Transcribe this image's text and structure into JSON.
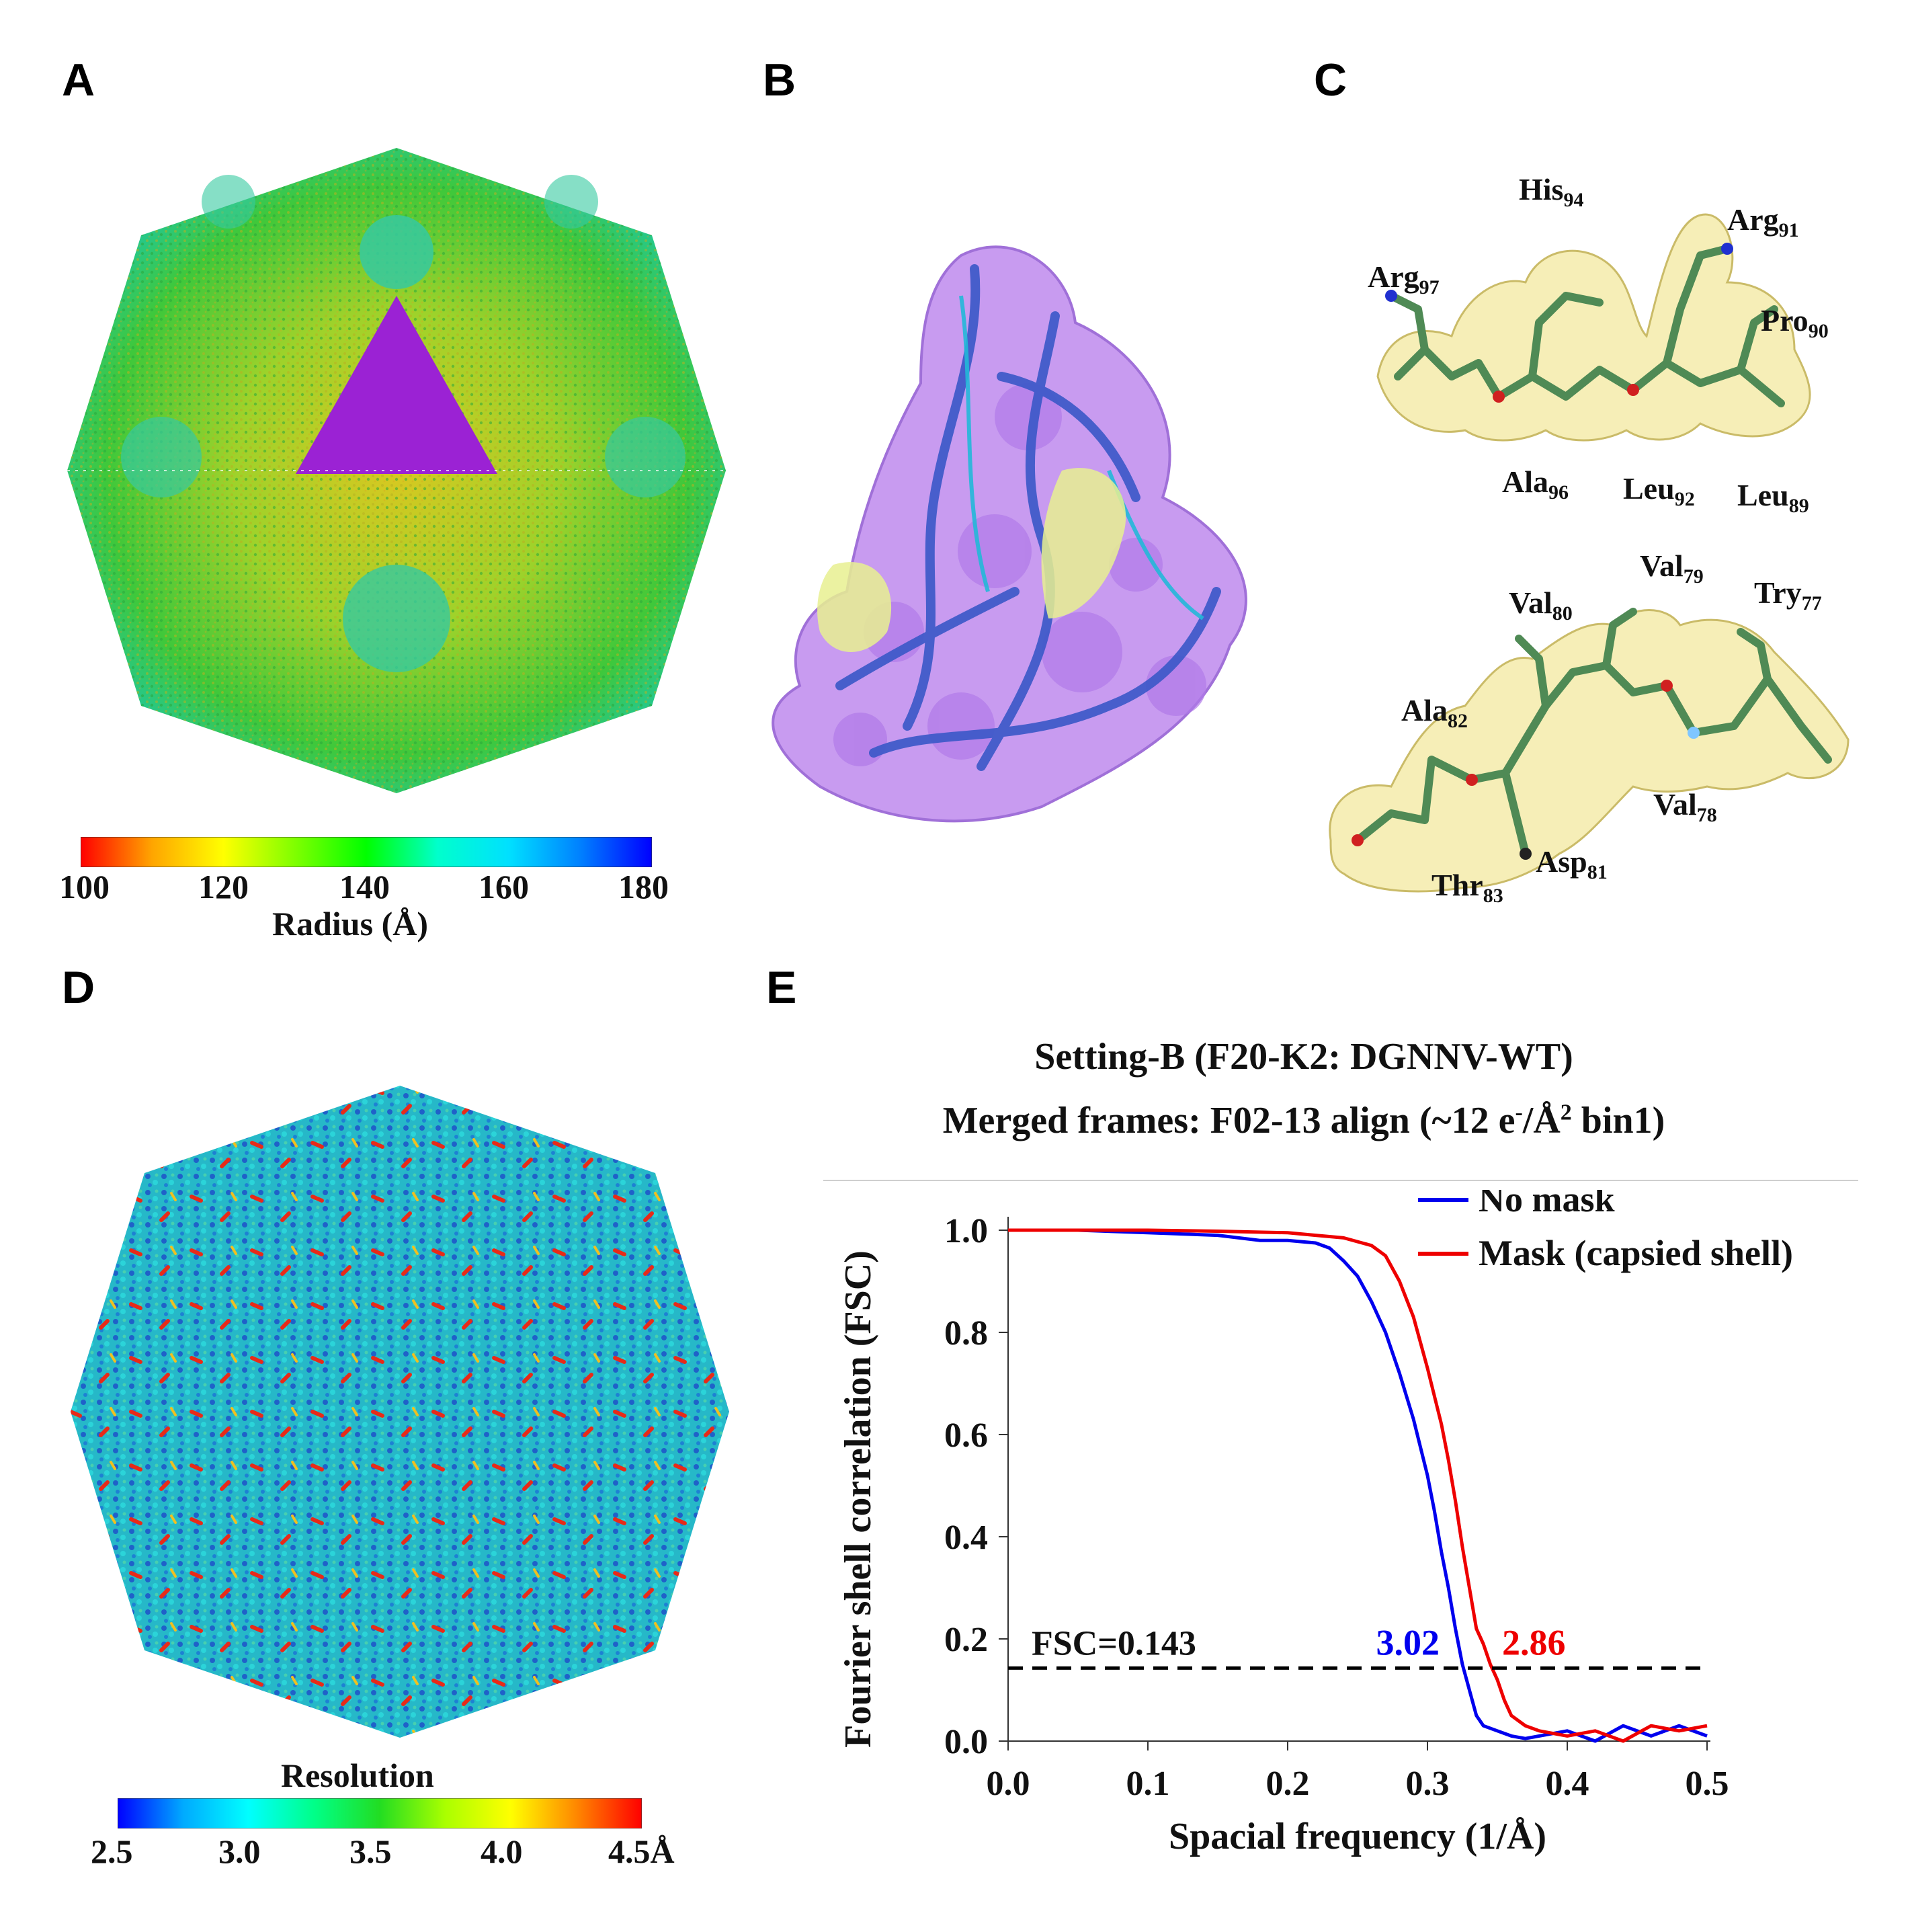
{
  "panels": {
    "A": {
      "label": "A",
      "colorbar": {
        "colors": [
          "#ff0000",
          "#ffa500",
          "#ffff00",
          "#7fff00",
          "#00ff00",
          "#00ffcc",
          "#00e0ff",
          "#0080ff",
          "#0000ff"
        ],
        "ticks": [
          "100",
          "120",
          "140",
          "160",
          "180"
        ],
        "title": "Radius (Å)"
      }
    },
    "B": {
      "label": "B"
    },
    "C": {
      "label": "C",
      "top_residues": [
        {
          "name": "His",
          "num": "94"
        },
        {
          "name": "Arg",
          "num": "91"
        },
        {
          "name": "Arg",
          "num": "97"
        },
        {
          "name": "Pro",
          "num": "90"
        },
        {
          "name": "Ala",
          "num": "96"
        },
        {
          "name": "Leu",
          "num": "92"
        },
        {
          "name": "Leu",
          "num": "89"
        }
      ],
      "bottom_residues": [
        {
          "name": "Val",
          "num": "79"
        },
        {
          "name": "Val",
          "num": "80"
        },
        {
          "name": "Try",
          "num": "77"
        },
        {
          "name": "Ala",
          "num": "82"
        },
        {
          "name": "Val",
          "num": "78"
        },
        {
          "name": "Asp",
          "num": "81"
        },
        {
          "name": "Thr",
          "num": "83"
        }
      ]
    },
    "D": {
      "label": "D",
      "colorbar": {
        "title": "Resolution",
        "colors": [
          "#0000ff",
          "#00aaff",
          "#00ffff",
          "#00ff88",
          "#22dd22",
          "#aaff00",
          "#ffff00",
          "#ff8800",
          "#ff0000"
        ],
        "ticks": [
          "2.5",
          "3.0",
          "3.5",
          "4.0",
          "4.5Å"
        ]
      }
    },
    "E": {
      "label": "E",
      "title_line1": "Setting-B (F20-K2: DGNNV-WT)",
      "title_line2_pre": "Merged frames: F02-13 align (~12 e",
      "title_line2_sup1": "-",
      "title_line2_mid": "/Å",
      "title_line2_sup2": "2",
      "title_line2_post": " bin1)"
    }
  },
  "chart_data": {
    "type": "line",
    "xlabel": "Spacial frequency (1/Å)",
    "ylabel": "Fourier shell correlation (FSC)",
    "xlim": [
      0,
      0.5
    ],
    "ylim": [
      0,
      1.0
    ],
    "xticks": [
      "0.0",
      "0.1",
      "0.2",
      "0.3",
      "0.4",
      "0.5"
    ],
    "yticks": [
      "0.0",
      "0.2",
      "0.4",
      "0.6",
      "0.8",
      "1.0"
    ],
    "threshold": {
      "value": 0.143,
      "label": "FSC=0.143"
    },
    "legend_position": "top-right",
    "series": [
      {
        "name": "No mask",
        "color": "#0000ee",
        "crossing_label": "3.02",
        "x": [
          0.0,
          0.05,
          0.1,
          0.15,
          0.18,
          0.2,
          0.22,
          0.23,
          0.24,
          0.25,
          0.26,
          0.27,
          0.28,
          0.29,
          0.3,
          0.305,
          0.31,
          0.315,
          0.32,
          0.325,
          0.33,
          0.335,
          0.34,
          0.35,
          0.36,
          0.37,
          0.38,
          0.4,
          0.42,
          0.44,
          0.46,
          0.48,
          0.5
        ],
        "y": [
          1.0,
          1.0,
          0.995,
          0.99,
          0.98,
          0.98,
          0.975,
          0.965,
          0.94,
          0.91,
          0.86,
          0.8,
          0.72,
          0.63,
          0.52,
          0.45,
          0.37,
          0.3,
          0.22,
          0.15,
          0.1,
          0.05,
          0.03,
          0.02,
          0.01,
          0.005,
          0.01,
          0.02,
          0.0,
          0.03,
          0.01,
          0.03,
          0.01
        ]
      },
      {
        "name": "Mask (capsied shell)",
        "color": "#ee0000",
        "crossing_label": "2.86",
        "x": [
          0.0,
          0.05,
          0.1,
          0.15,
          0.2,
          0.22,
          0.24,
          0.26,
          0.27,
          0.28,
          0.29,
          0.3,
          0.31,
          0.315,
          0.32,
          0.325,
          0.33,
          0.335,
          0.34,
          0.345,
          0.35,
          0.355,
          0.36,
          0.37,
          0.38,
          0.4,
          0.42,
          0.44,
          0.46,
          0.48,
          0.5
        ],
        "y": [
          1.0,
          1.0,
          1.0,
          0.998,
          0.995,
          0.99,
          0.985,
          0.97,
          0.95,
          0.9,
          0.83,
          0.73,
          0.62,
          0.55,
          0.47,
          0.38,
          0.3,
          0.22,
          0.19,
          0.15,
          0.12,
          0.08,
          0.05,
          0.03,
          0.02,
          0.01,
          0.02,
          0.0,
          0.03,
          0.02,
          0.03
        ]
      }
    ]
  }
}
